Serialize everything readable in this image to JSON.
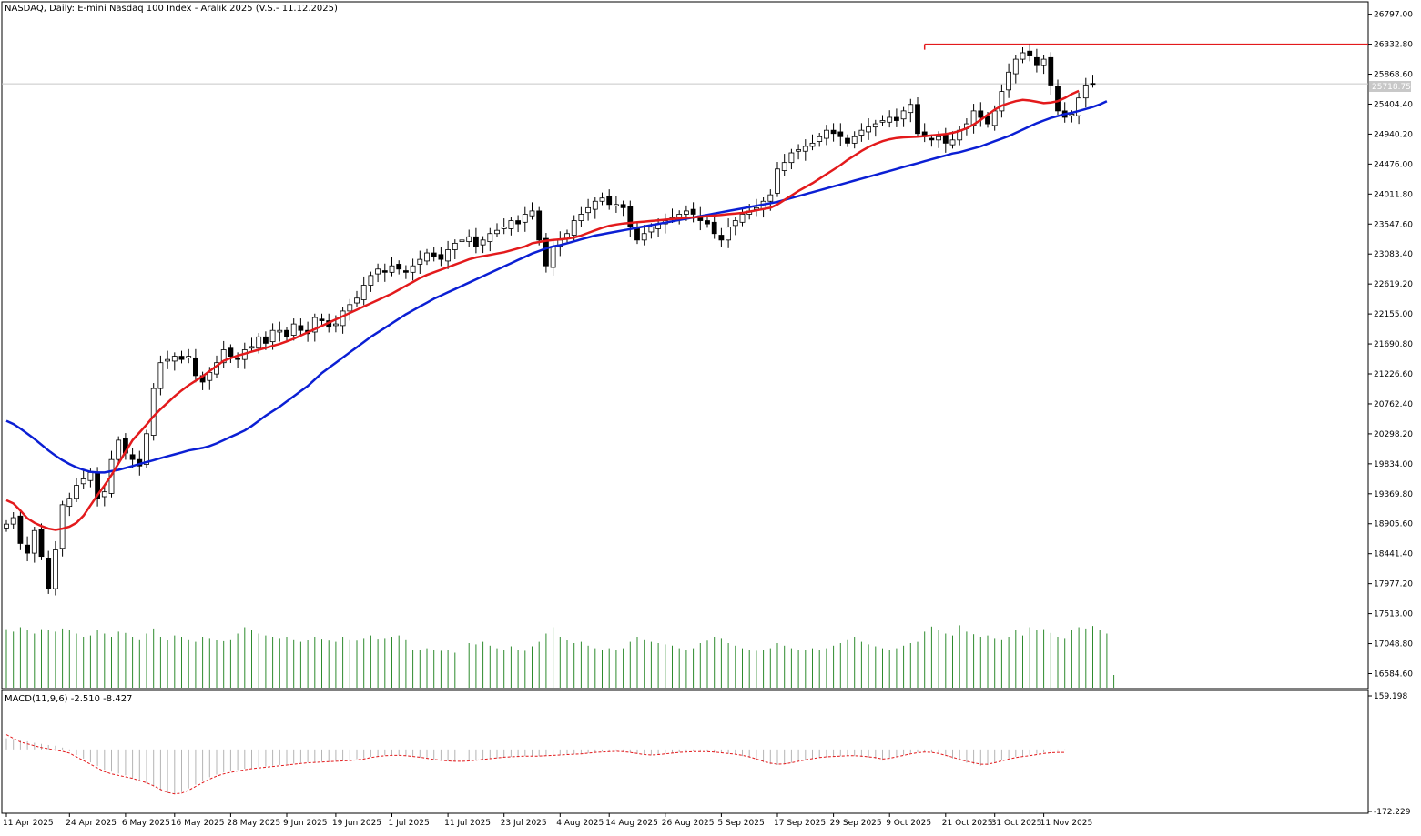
{
  "header": {
    "title": "NASDAQ, Daily:  E-mini Nasdaq 100 Index - Aralık 2025 (V.S.- 11.12.2025)"
  },
  "macd_panel": {
    "label": "MACD(11,9,6) -2.510 -8.427"
  },
  "current_price_label": "25718.75",
  "colors": {
    "background": "#ffffff",
    "axis": "#000000",
    "candle_up_fill": "#ffffff",
    "candle_down_fill": "#000000",
    "ma_fast": "#e31a1c",
    "ma_slow": "#0b1fd4",
    "volume": "#2e8b2e",
    "macd_hist": "#b4b4b4",
    "macd_signal": "#e31a1c",
    "resistance_line": "#e31a1c",
    "price_line": "#c8c8c8"
  },
  "chart_data": {
    "type": "candlestick",
    "price_axis": {
      "range": [
        16352,
        26989
      ],
      "ticks": [
        26797.0,
        26332.8,
        25868.6,
        25404.4,
        24940.2,
        24476.0,
        24011.8,
        23547.6,
        23083.4,
        22619.2,
        22155.0,
        21690.8,
        21226.6,
        20762.4,
        20298.2,
        19834.0,
        19369.8,
        18905.6,
        18441.4,
        17977.2,
        17513.0,
        17048.8,
        16584.6
      ],
      "tick_labels": [
        "26797.00",
        "26332.80",
        "25868.60",
        "25404.40",
        "24940.20",
        "24476.00",
        "24011.80",
        "23547.60",
        "23083.40",
        "22619.20",
        "22155.00",
        "21690.80",
        "21226.60",
        "20762.40",
        "20298.20",
        "19834.00",
        "19369.80",
        "18905.60",
        "18441.40",
        "17977.20",
        "17513.00",
        "17048.80",
        "16584.60"
      ]
    },
    "macd_axis": {
      "range": [
        -172.229,
        159.198
      ],
      "tick_labels": [
        "159.198",
        "-172.229"
      ]
    },
    "x_labels": [
      "11 Apr 2025",
      "24 Apr 2025",
      "6 May 2025",
      "16 May 2025",
      "28 May 2025",
      "9 Jun 2025",
      "19 Jun 2025",
      "1 Jul 2025",
      "11 Jul 2025",
      "23 Jul 2025",
      "4 Aug 2025",
      "14 Aug 2025",
      "26 Aug 2025",
      "5 Sep 2025",
      "17 Sep 2025",
      "29 Sep 2025",
      "9 Oct 2025",
      "21 Oct 2025",
      "31 Oct 2025",
      "11 Nov 2025"
    ],
    "x_label_bars": [
      0,
      9,
      17,
      24,
      32,
      40,
      47,
      55,
      63,
      71,
      79,
      86,
      94,
      102,
      110,
      118,
      126,
      134,
      141,
      148
    ],
    "closes": [
      18900,
      19000,
      18600,
      18450,
      18800,
      18400,
      17900,
      18500,
      19200,
      19300,
      19500,
      19600,
      19700,
      19300,
      19400,
      19900,
      20200,
      20000,
      19900,
      19800,
      20300,
      21000,
      21400,
      21450,
      21500,
      21450,
      21500,
      21200,
      21100,
      21250,
      21400,
      21600,
      21500,
      21450,
      21600,
      21650,
      21800,
      21700,
      21900,
      21900,
      21800,
      22000,
      21900,
      21850,
      22100,
      22050,
      21950,
      22000,
      22200,
      22300,
      22400,
      22600,
      22750,
      22850,
      22800,
      22900,
      22850,
      22800,
      22900,
      23000,
      23100,
      23050,
      23000,
      23150,
      23250,
      23300,
      23350,
      23200,
      23300,
      23400,
      23450,
      23500,
      23600,
      23550,
      23700,
      23750,
      23300,
      22900,
      23200,
      23300,
      23400,
      23600,
      23700,
      23800,
      23900,
      23950,
      23850,
      23850,
      23800,
      23500,
      23300,
      23400,
      23500,
      23550,
      23600,
      23650,
      23700,
      23750,
      23700,
      23600,
      23550,
      23400,
      23300,
      23500,
      23600,
      23700,
      23750,
      23800,
      23900,
      24000,
      24400,
      24500,
      24650,
      24700,
      24750,
      24800,
      24900,
      25000,
      24950,
      24900,
      24800,
      24900,
      25000,
      25050,
      25100,
      25150,
      25200,
      25150,
      25300,
      25400,
      24950,
      24900,
      24850,
      24900,
      24800,
      24850,
      25000,
      25100,
      25300,
      25200,
      25100,
      25300,
      25600,
      25900,
      26100,
      26200,
      26150,
      26000,
      26100,
      25700,
      25300,
      25200,
      25250,
      25500,
      25700,
      25720
    ],
    "ma_fast": [
      19270,
      19220,
      19110,
      18990,
      18920,
      18870,
      18830,
      18810,
      18830,
      18860,
      18920,
      19030,
      19190,
      19350,
      19500,
      19660,
      19840,
      20020,
      20200,
      20320,
      20440,
      20570,
      20680,
      20780,
      20880,
      20970,
      21050,
      21120,
      21190,
      21270,
      21350,
      21430,
      21470,
      21510,
      21540,
      21570,
      21600,
      21630,
      21660,
      21690,
      21730,
      21770,
      21820,
      21870,
      21920,
      21970,
      22020,
      22070,
      22120,
      22170,
      22220,
      22270,
      22320,
      22370,
      22420,
      22470,
      22530,
      22590,
      22650,
      22710,
      22760,
      22800,
      22840,
      22880,
      22920,
      22960,
      23000,
      23030,
      23050,
      23070,
      23090,
      23110,
      23140,
      23170,
      23200,
      23250,
      23270,
      23290,
      23300,
      23310,
      23320,
      23340,
      23370,
      23410,
      23450,
      23490,
      23520,
      23540,
      23555,
      23565,
      23575,
      23585,
      23595,
      23605,
      23615,
      23625,
      23635,
      23645,
      23650,
      23660,
      23670,
      23680,
      23690,
      23700,
      23710,
      23720,
      23740,
      23760,
      23780,
      23800,
      23850,
      23920,
      23990,
      24060,
      24120,
      24180,
      24250,
      24320,
      24390,
      24460,
      24540,
      24610,
      24680,
      24740,
      24790,
      24830,
      24860,
      24880,
      24890,
      24895,
      24900,
      24910,
      24920,
      24930,
      24940,
      24960,
      24990,
      25030,
      25090,
      25160,
      25240,
      25320,
      25380,
      25420,
      25450,
      25470,
      25460,
      25440,
      25420,
      25430,
      25450,
      25500,
      25560,
      25610
    ],
    "ma_slow": [
      20500,
      20450,
      20380,
      20300,
      20220,
      20130,
      20040,
      19960,
      19890,
      19830,
      19780,
      19740,
      19710,
      19700,
      19700,
      19720,
      19740,
      19770,
      19800,
      19830,
      19860,
      19890,
      19920,
      19950,
      19980,
      20010,
      20040,
      20060,
      20080,
      20110,
      20150,
      20200,
      20250,
      20300,
      20350,
      20420,
      20500,
      20580,
      20650,
      20720,
      20800,
      20880,
      20960,
      21040,
      21140,
      21240,
      21320,
      21400,
      21480,
      21560,
      21640,
      21720,
      21800,
      21870,
      21940,
      22010,
      22080,
      22150,
      22210,
      22270,
      22330,
      22390,
      22440,
      22490,
      22540,
      22590,
      22640,
      22690,
      22740,
      22790,
      22840,
      22890,
      22940,
      22990,
      23040,
      23090,
      23130,
      23170,
      23200,
      23220,
      23250,
      23280,
      23310,
      23340,
      23370,
      23390,
      23410,
      23430,
      23450,
      23470,
      23490,
      23510,
      23530,
      23550,
      23570,
      23590,
      23610,
      23630,
      23650,
      23670,
      23690,
      23710,
      23730,
      23750,
      23770,
      23790,
      23810,
      23830,
      23850,
      23870,
      23890,
      23920,
      23950,
      23980,
      24010,
      24040,
      24070,
      24100,
      24130,
      24160,
      24190,
      24220,
      24250,
      24280,
      24310,
      24340,
      24370,
      24400,
      24430,
      24460,
      24490,
      24520,
      24550,
      24580,
      24610,
      24640,
      24660,
      24690,
      24720,
      24750,
      24790,
      24830,
      24870,
      24910,
      24960,
      25010,
      25060,
      25110,
      25150,
      25190,
      25220,
      25250,
      25270,
      25300,
      25330,
      25360,
      25400,
      25450
    ],
    "resistance_level": 26332,
    "price_line_level": 25718.75,
    "volume_levels": [
      0.92,
      0.88,
      0.95,
      0.9,
      0.85,
      0.92,
      0.9,
      0.88,
      0.93,
      0.9,
      0.85,
      0.8,
      0.82,
      0.9,
      0.85,
      0.8,
      0.88,
      0.86,
      0.8,
      0.76,
      0.85,
      0.93,
      0.8,
      0.75,
      0.82,
      0.8,
      0.76,
      0.72,
      0.8,
      0.78,
      0.75,
      0.73,
      0.76,
      0.85,
      0.95,
      0.9,
      0.85,
      0.82,
      0.8,
      0.78,
      0.8,
      0.76,
      0.72,
      0.75,
      0.8,
      0.77,
      0.74,
      0.72,
      0.8,
      0.76,
      0.74,
      0.78,
      0.82,
      0.77,
      0.78,
      0.8,
      0.82,
      0.76,
      0.6,
      0.6,
      0.62,
      0.6,
      0.58,
      0.6,
      0.55,
      0.72,
      0.7,
      0.68,
      0.72,
      0.66,
      0.62,
      0.6,
      0.65,
      0.6,
      0.58,
      0.65,
      0.72,
      0.85,
      0.95,
      0.8,
      0.75,
      0.7,
      0.72,
      0.66,
      0.62,
      0.6,
      0.62,
      0.6,
      0.62,
      0.72,
      0.8,
      0.76,
      0.72,
      0.7,
      0.68,
      0.66,
      0.62,
      0.6,
      0.62,
      0.7,
      0.74,
      0.8,
      0.78,
      0.7,
      0.66,
      0.62,
      0.6,
      0.58,
      0.6,
      0.62,
      0.7,
      0.66,
      0.62,
      0.6,
      0.6,
      0.62,
      0.6,
      0.62,
      0.66,
      0.7,
      0.76,
      0.8,
      0.72,
      0.68,
      0.65,
      0.62,
      0.6,
      0.62,
      0.66,
      0.7,
      0.72,
      0.88,
      0.96,
      0.9,
      0.85,
      0.82,
      0.98,
      0.88,
      0.84,
      0.8,
      0.82,
      0.78,
      0.76,
      0.8,
      0.9,
      0.82,
      0.95,
      0.9,
      0.92,
      0.86,
      0.8,
      0.78,
      0.9,
      0.95,
      0.93,
      0.97,
      0.9,
      0.85,
      0.2
    ],
    "macd_hist": [
      30,
      28,
      25,
      22,
      18,
      15,
      12,
      10,
      5,
      -5,
      -15,
      -25,
      -35,
      -45,
      -55,
      -60,
      -65,
      -70,
      -78,
      -85,
      -92,
      -100,
      -110,
      -118,
      -120,
      -115,
      -105,
      -95,
      -85,
      -75,
      -68,
      -62,
      -58,
      -55,
      -52,
      -50,
      -48,
      -46,
      -44,
      -42,
      -40,
      -38,
      -36,
      -35,
      -34,
      -33,
      -32,
      -31,
      -30,
      -28,
      -26,
      -24,
      -20,
      -18,
      -16,
      -15,
      -16,
      -18,
      -20,
      -22,
      -25,
      -28,
      -30,
      -32,
      -33,
      -33,
      -32,
      -30,
      -28,
      -26,
      -24,
      -22,
      -20,
      -19,
      -18,
      -18,
      -18,
      -17,
      -16,
      -15,
      -14,
      -13,
      -12,
      -10,
      -8,
      -6,
      -5,
      -4,
      -6,
      -8,
      -12,
      -15,
      -16,
      -14,
      -12,
      -10,
      -8,
      -6,
      -5,
      -5,
      -6,
      -8,
      -10,
      -12,
      -14,
      -18,
      -22,
      -28,
      -35,
      -40,
      -42,
      -40,
      -36,
      -32,
      -28,
      -25,
      -22,
      -20,
      -19,
      -18,
      -17,
      -18,
      -20,
      -22,
      -25,
      -30,
      -25,
      -20,
      -15,
      -10,
      -8,
      -6,
      -8,
      -12,
      -18,
      -24,
      -30,
      -36,
      -40,
      -44,
      -42,
      -36,
      -30,
      -24,
      -20,
      -18,
      -16,
      -12,
      -8,
      -6,
      -4,
      -3
    ],
    "macd_signal": [
      40,
      30,
      20,
      15,
      10,
      5,
      2,
      -2,
      -5,
      -10,
      -20,
      -30,
      -40,
      -50,
      -60,
      -66,
      -70,
      -74,
      -78,
      -84,
      -90,
      -98,
      -108,
      -116,
      -120,
      -118,
      -110,
      -100,
      -90,
      -80,
      -72,
      -66,
      -62,
      -58,
      -55,
      -52,
      -50,
      -48,
      -46,
      -44,
      -42,
      -40,
      -38,
      -36,
      -35,
      -34,
      -33,
      -32,
      -31,
      -30,
      -28,
      -26,
      -22,
      -19,
      -17,
      -16,
      -16,
      -17,
      -19,
      -21,
      -24,
      -27,
      -29,
      -31,
      -32,
      -32,
      -31,
      -29,
      -27,
      -25,
      -23,
      -21,
      -20,
      -19,
      -18,
      -18,
      -18,
      -17,
      -16,
      -15,
      -14,
      -13,
      -12,
      -10,
      -8,
      -7,
      -6,
      -5,
      -6,
      -8,
      -11,
      -14,
      -15,
      -14,
      -12,
      -10,
      -8,
      -7,
      -6,
      -6,
      -6,
      -7,
      -9,
      -11,
      -13,
      -16,
      -20,
      -26,
      -32,
      -37,
      -40,
      -39,
      -36,
      -32,
      -28,
      -25,
      -22,
      -20,
      -19,
      -18,
      -17,
      -17,
      -18,
      -20,
      -22,
      -26,
      -24,
      -20,
      -16,
      -12,
      -9,
      -7,
      -8,
      -11,
      -16,
      -21,
      -27,
      -32,
      -36,
      -40,
      -40,
      -36,
      -31,
      -26,
      -22,
      -19,
      -17,
      -14,
      -11,
      -9,
      -8,
      -8
    ]
  }
}
